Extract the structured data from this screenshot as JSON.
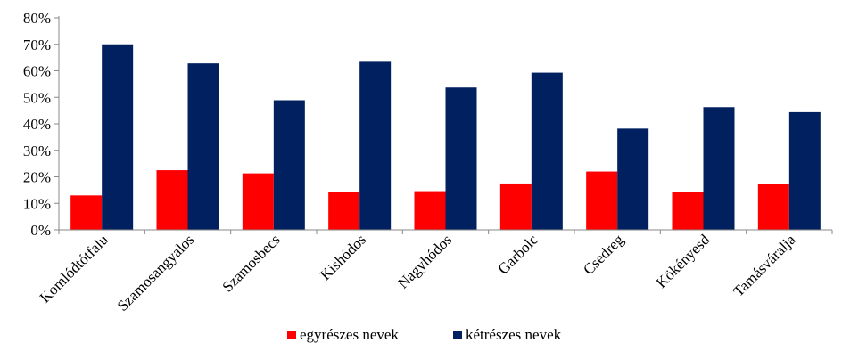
{
  "chart_data": {
    "type": "bar",
    "title": "",
    "xlabel": "",
    "ylabel": "",
    "categories": [
      "Komlódtótfalu",
      "Szamosangyalos",
      "Szamosbecs",
      "Kishódos",
      "Nagyhódos",
      "Garbolc",
      "Csedreg",
      "Kökényesd",
      "Tamásváralja"
    ],
    "series": [
      {
        "name": "egyrészes nevek",
        "color": "#ff0000",
        "values": [
          13,
          22.5,
          21.3,
          14.2,
          14.6,
          17.5,
          22,
          14.2,
          17.2
        ]
      },
      {
        "name": "kétrészes nevek",
        "color": "#002060",
        "values": [
          70,
          62.8,
          48.9,
          63.4,
          53.7,
          59.3,
          38.2,
          46.3,
          44.4
        ]
      }
    ],
    "ylim": [
      0,
      80
    ],
    "yticks": [
      0,
      10,
      20,
      30,
      40,
      50,
      60,
      70,
      80
    ],
    "ytick_labels": [
      "0%",
      "10%",
      "20%",
      "30%",
      "40%",
      "50%",
      "60%",
      "70%",
      "80%"
    ],
    "grid": false,
    "legend": "bottom"
  }
}
